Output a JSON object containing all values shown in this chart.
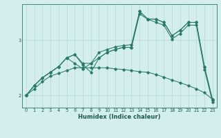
{
  "title": "",
  "xlabel": "Humidex (Indice chaleur)",
  "bg_color": "#d4eeed",
  "grid_color": "#b8dbd8",
  "line_color": "#2a7a6a",
  "x_ticks": [
    0,
    1,
    2,
    3,
    4,
    5,
    6,
    7,
    8,
    9,
    10,
    11,
    12,
    13,
    14,
    15,
    16,
    17,
    18,
    19,
    20,
    21,
    22,
    23
  ],
  "y_ticks": [
    2,
    3
  ],
  "xlim": [
    -0.5,
    23.5
  ],
  "ylim": [
    1.78,
    3.65
  ],
  "series": [
    [
      0,
      2.0,
      1,
      2.18,
      2,
      2.32,
      3,
      2.42,
      4,
      2.52,
      5,
      2.68,
      6,
      2.74,
      7,
      2.58,
      8,
      2.58,
      9,
      2.78,
      10,
      2.83,
      11,
      2.88,
      12,
      2.9,
      13,
      2.92,
      14,
      3.52,
      15,
      3.38,
      16,
      3.38,
      17,
      3.32,
      18,
      3.08,
      19,
      3.18,
      20,
      3.32,
      21,
      3.32,
      22,
      2.52,
      23,
      1.92
    ],
    [
      0,
      2.0,
      1,
      2.18,
      2,
      2.32,
      3,
      2.42,
      4,
      2.52,
      5,
      2.68,
      6,
      2.74,
      7,
      2.55,
      8,
      2.42,
      9,
      2.68,
      10,
      2.78,
      11,
      2.83,
      12,
      2.87,
      13,
      2.87,
      14,
      3.52,
      15,
      3.38,
      16,
      3.38,
      17,
      3.32,
      18,
      3.08,
      19,
      3.18,
      20,
      3.32,
      21,
      3.32,
      22,
      2.52,
      23,
      1.92
    ],
    [
      0,
      2.0,
      1,
      2.18,
      2,
      2.32,
      3,
      2.42,
      4,
      2.52,
      5,
      2.68,
      6,
      2.58,
      7,
      2.48,
      8,
      2.58,
      9,
      2.68,
      10,
      2.78,
      11,
      2.83,
      12,
      2.87,
      13,
      2.87,
      14,
      3.47,
      15,
      3.38,
      16,
      3.32,
      17,
      3.27,
      18,
      3.02,
      19,
      3.12,
      20,
      3.27,
      21,
      3.27,
      22,
      2.47,
      23,
      1.88
    ],
    [
      0,
      2.0,
      1,
      2.12,
      2,
      2.25,
      3,
      2.35,
      4,
      2.4,
      5,
      2.45,
      6,
      2.5,
      7,
      2.5,
      8,
      2.5,
      9,
      2.5,
      10,
      2.5,
      11,
      2.48,
      12,
      2.47,
      13,
      2.45,
      14,
      2.43,
      15,
      2.42,
      16,
      2.38,
      17,
      2.33,
      18,
      2.28,
      19,
      2.23,
      20,
      2.18,
      21,
      2.12,
      22,
      2.05,
      23,
      1.93
    ]
  ]
}
